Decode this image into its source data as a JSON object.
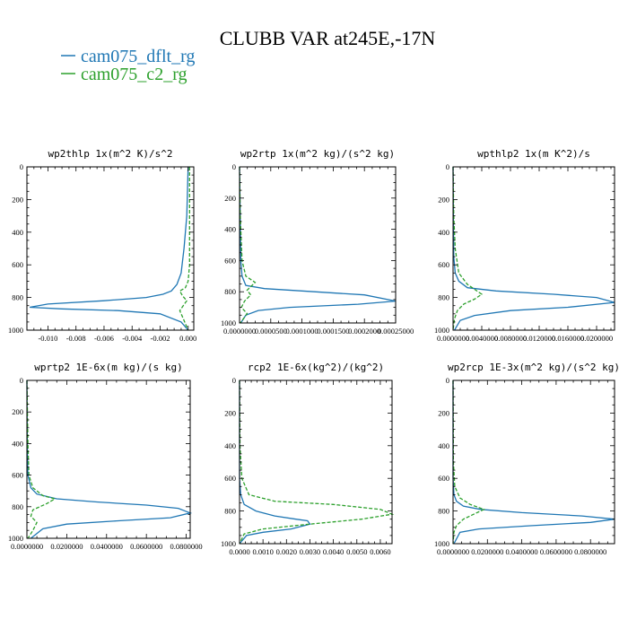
{
  "title": "CLUBB VAR at245E,-17N",
  "legend": [
    {
      "label": "cam075_dflt_rg",
      "color": "#1f77b4",
      "style": "solid"
    },
    {
      "label": "cam075_c2_rg",
      "color": "#2ca02c",
      "style": "dashed"
    }
  ],
  "chart_data": [
    {
      "type": "line",
      "title": "wp2thlp   1x(m^2 K)/s^2",
      "xlim": [
        -0.0115,
        0.0004
      ],
      "ylim": [
        1000,
        0
      ],
      "xticks": [
        -0.01,
        -0.008,
        -0.006,
        -0.004,
        -0.002,
        0.0
      ],
      "xtick_labels": [
        "-0.010",
        "-0.008",
        "-0.006",
        "-0.004",
        "-0.002",
        "0.000"
      ],
      "yticks": [
        0,
        200,
        400,
        600,
        800,
        1000
      ],
      "series": [
        {
          "name": "cam075_dflt_rg",
          "x": [
            0,
            -0.0001,
            -0.0003,
            -0.0005,
            -0.0008,
            -0.0012,
            -0.0018,
            -0.003,
            -0.006,
            -0.01,
            -0.0113,
            -0.009,
            -0.005,
            -0.002,
            -0.0005,
            0
          ],
          "y": [
            0,
            300,
            500,
            650,
            720,
            760,
            780,
            800,
            820,
            840,
            860,
            870,
            880,
            900,
            950,
            1000
          ]
        },
        {
          "name": "cam075_c2_rg",
          "x": [
            0.0001,
            0.0001,
            0.0001,
            0.0001,
            0.0,
            -0.0002,
            -0.0006,
            -0.0004,
            -0.0001,
            -0.0006,
            -0.0003,
            0.0
          ],
          "y": [
            0,
            200,
            400,
            600,
            700,
            740,
            760,
            790,
            820,
            880,
            940,
            1000
          ]
        }
      ]
    },
    {
      "type": "line",
      "title": "wp2rtp   1x(m^2 kg)/(s^2 kg)",
      "xlim": [
        0,
        0.00025
      ],
      "ylim": [
        1000,
        0
      ],
      "xticks": [
        0,
        5e-05,
        0.0001,
        0.00015,
        0.0002,
        0.00025
      ],
      "xtick_labels": [
        "0.0000000",
        "0.0000500",
        "0.0001000",
        "0.0001500",
        "0.0002000",
        "0.00025000"
      ],
      "yticks": [
        0,
        200,
        400,
        600,
        800,
        1000
      ],
      "series": [
        {
          "name": "cam075_dflt_rg",
          "x": [
            0,
            1e-06,
            2e-06,
            4e-06,
            1e-05,
            4e-05,
            0.00012,
            0.0002,
            0.00025,
            0.00019,
            8e-05,
            3e-05,
            1e-05,
            2e-06
          ],
          "y": [
            0,
            300,
            600,
            700,
            760,
            780,
            800,
            820,
            860,
            880,
            900,
            920,
            950,
            1000
          ]
        },
        {
          "name": "cam075_c2_rg",
          "x": [
            0,
            1e-06,
            4e-06,
            1e-05,
            2.5e-05,
            1.2e-05,
            1.8e-05,
            8e-06,
            3e-06,
            1.2e-05,
            5e-06,
            1e-06
          ],
          "y": [
            0,
            300,
            600,
            700,
            740,
            790,
            820,
            860,
            900,
            940,
            980,
            1000
          ]
        }
      ]
    },
    {
      "type": "line",
      "title": "wpthlp2   1x(m K^2)/s",
      "xlim": [
        0,
        0.0225
      ],
      "ylim": [
        1000,
        0
      ],
      "xticks": [
        0,
        0.004,
        0.008,
        0.012,
        0.016,
        0.02
      ],
      "xtick_labels": [
        "0.0000000",
        "0.0040000",
        "0.0080000",
        "0.0120000",
        "0.0160000",
        "0.0200000"
      ],
      "yticks": [
        0,
        200,
        400,
        600,
        800,
        1000
      ],
      "series": [
        {
          "name": "cam075_dflt_rg",
          "x": [
            0,
            5e-05,
            0.0001,
            0.0003,
            0.0008,
            0.002,
            0.006,
            0.014,
            0.02,
            0.0225,
            0.016,
            0.008,
            0.003,
            0.001,
            0.0002
          ],
          "y": [
            0,
            300,
            550,
            650,
            700,
            740,
            760,
            780,
            800,
            830,
            860,
            880,
            910,
            940,
            1000
          ]
        },
        {
          "name": "cam075_c2_rg",
          "x": [
            0,
            0.0001,
            0.0003,
            0.0008,
            0.002,
            0.004,
            0.003,
            0.0015,
            0.0006,
            0.0002,
            0
          ],
          "y": [
            0,
            300,
            500,
            650,
            720,
            780,
            810,
            840,
            880,
            930,
            1000
          ]
        }
      ]
    },
    {
      "type": "line",
      "title": "wprtp2   1E-6x(m kg)/(s kg)",
      "xlim": [
        0,
        0.082
      ],
      "ylim": [
        1000,
        0
      ],
      "xticks": [
        0,
        0.02,
        0.04,
        0.06,
        0.08
      ],
      "xtick_labels": [
        "0.0000000",
        "0.0200000",
        "0.0400000",
        "0.0600000",
        "0.0800000"
      ],
      "yticks": [
        0,
        200,
        400,
        600,
        800,
        1000
      ],
      "series": [
        {
          "name": "cam075_dflt_rg",
          "x": [
            0,
            0.0002,
            0.0005,
            0.002,
            0.005,
            0.015,
            0.035,
            0.06,
            0.076,
            0.082,
            0.072,
            0.045,
            0.02,
            0.008,
            0.002
          ],
          "y": [
            0,
            400,
            600,
            680,
            720,
            750,
            770,
            790,
            810,
            840,
            870,
            890,
            910,
            940,
            1000
          ]
        },
        {
          "name": "cam075_c2_rg",
          "x": [
            0,
            0.0005,
            0.001,
            0.003,
            0.008,
            0.014,
            0.01,
            0.003,
            0.002,
            0.005,
            0.003,
            0.0005
          ],
          "y": [
            0,
            400,
            600,
            680,
            730,
            750,
            780,
            820,
            860,
            900,
            950,
            1000
          ]
        }
      ]
    },
    {
      "type": "line",
      "title": "rcp2   1E-6x(kg^2)/(kg^2)",
      "xlim": [
        0,
        0.0065
      ],
      "ylim": [
        1000,
        0
      ],
      "xticks": [
        0,
        0.001,
        0.002,
        0.003,
        0.004,
        0.005,
        0.006
      ],
      "xtick_labels": [
        "0.0000",
        "0.0010",
        "0.0020",
        "0.0030",
        "0.0040",
        "0.0050",
        "0.0060"
      ],
      "yticks": [
        0,
        200,
        400,
        600,
        800,
        1000
      ],
      "series": [
        {
          "name": "cam075_dflt_rg",
          "x": [
            0,
            0,
            5e-05,
            0.0002,
            0.0007,
            0.0015,
            0.0024,
            0.0029,
            0.003,
            0.0022,
            0.001,
            0.0003,
            0
          ],
          "y": [
            0,
            600,
            700,
            760,
            800,
            830,
            850,
            860,
            880,
            910,
            930,
            950,
            1000
          ]
        },
        {
          "name": "cam075_c2_rg",
          "x": [
            0,
            2e-05,
            0.0001,
            0.0004,
            0.0015,
            0.004,
            0.006,
            0.0065,
            0.0052,
            0.003,
            0.001,
            0.0002,
            0
          ],
          "y": [
            0,
            400,
            600,
            700,
            740,
            760,
            790,
            820,
            850,
            880,
            910,
            940,
            1000
          ]
        }
      ]
    },
    {
      "type": "line",
      "title": "wp2rcp   1E-3x(m^2 kg)/(s^2 kg)",
      "xlim": [
        0,
        0.094
      ],
      "ylim": [
        1000,
        0
      ],
      "xticks": [
        0,
        0.02,
        0.04,
        0.06,
        0.08
      ],
      "xtick_labels": [
        "0.0000000",
        "0.0200000",
        "0.0400000",
        "0.0600000",
        "0.0800000"
      ],
      "yticks": [
        0,
        200,
        400,
        600,
        800,
        1000
      ],
      "series": [
        {
          "name": "cam075_dflt_rg",
          "x": [
            0,
            0,
            0.0005,
            0.002,
            0.006,
            0.016,
            0.04,
            0.075,
            0.094,
            0.08,
            0.045,
            0.015,
            0.004,
            0.0005
          ],
          "y": [
            0,
            600,
            700,
            740,
            770,
            790,
            810,
            830,
            850,
            870,
            890,
            910,
            930,
            1000
          ]
        },
        {
          "name": "cam075_c2_rg",
          "x": [
            0,
            0.0002,
            0.001,
            0.004,
            0.01,
            0.018,
            0.012,
            0.006,
            0.002,
            0.0005,
            0
          ],
          "y": [
            0,
            500,
            650,
            720,
            760,
            790,
            820,
            850,
            890,
            930,
            1000
          ]
        }
      ]
    }
  ]
}
